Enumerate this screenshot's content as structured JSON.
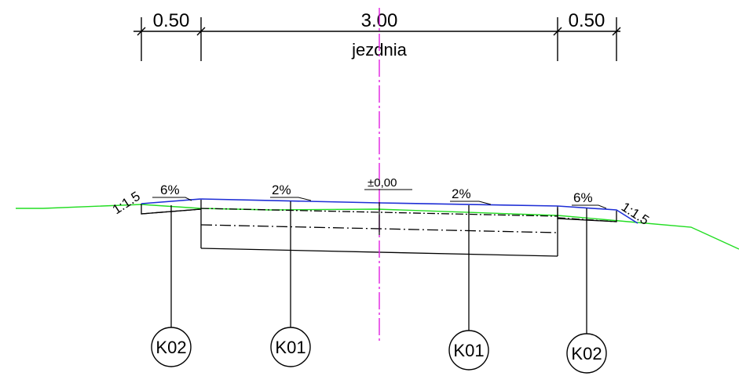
{
  "dimensions": {
    "left_shoulder": "0.50",
    "carriageway": "3.00",
    "right_shoulder": "0.50",
    "carriageway_label": "jezdnia"
  },
  "elevation_label": "±0,00",
  "slopes": {
    "left_bank": "1:1.5",
    "left_shoulder": "6%",
    "left_lane": "2%",
    "right_lane": "2%",
    "right_shoulder": "6%",
    "right_bank": "1:1.5"
  },
  "layer_callouts": [
    "K02",
    "K01",
    "K01",
    "K02"
  ],
  "colors": {
    "surface": "#1f2fd6",
    "terrain": "#22dd22",
    "axis": "#e020e0",
    "lines": "#000000"
  }
}
